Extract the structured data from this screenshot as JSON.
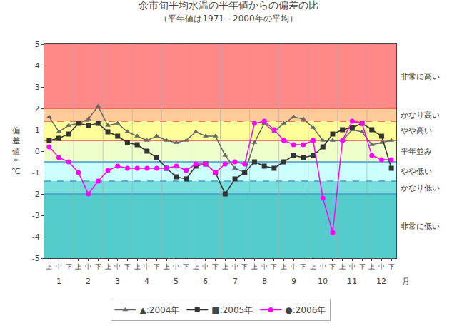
{
  "chart_data": {
    "type": "line",
    "title": "余市旬平均水温の平年値からの偏差の比",
    "subtitle": "（平年値は1971－2000年の平均）",
    "ylabel": "偏\n差\n値\n*\n℃",
    "categories": [
      "上",
      "中",
      "下",
      "上",
      "中",
      "下",
      "上",
      "中",
      "下",
      "上",
      "中",
      "下",
      "上",
      "中",
      "下",
      "上",
      "中",
      "下",
      "上",
      "中",
      "下",
      "上",
      "中",
      "下",
      "上",
      "中",
      "下",
      "上",
      "中",
      "下",
      "上",
      "中",
      "下",
      "上",
      "中",
      "下"
    ],
    "month_labels": [
      "1",
      "2",
      "3",
      "4",
      "5",
      "6",
      "7",
      "8",
      "9",
      "10",
      "11",
      "12"
    ],
    "month_unit": "月",
    "series": [
      {
        "name": "▲:2004年",
        "color": "#666666",
        "marker": "triangle",
        "values": [
          1.6,
          0.9,
          1.2,
          1.3,
          1.5,
          2.1,
          1.2,
          1.3,
          0.9,
          0.7,
          0.5,
          0.7,
          0.5,
          0.4,
          0.5,
          0.9,
          0.7,
          0.7,
          -0.2,
          -0.8,
          -1.0,
          0.4,
          1.3,
          0.9,
          1.3,
          1.6,
          1.5,
          1.1,
          0.5,
          0.5,
          0.5,
          1.0,
          0.9,
          0.3,
          0.4,
          0.5
        ]
      },
      {
        "name": "■:2005年",
        "color": "#333333",
        "marker": "square",
        "values": [
          0.5,
          0.6,
          0.8,
          1.3,
          1.2,
          1.3,
          0.9,
          0.7,
          0.4,
          0.3,
          0.0,
          -0.3,
          -0.8,
          -1.2,
          -1.3,
          -0.7,
          -0.6,
          -1.0,
          -2.0,
          -1.3,
          -1.0,
          -0.5,
          -0.7,
          -0.8,
          -0.5,
          -0.2,
          -0.3,
          -0.2,
          0.2,
          0.8,
          1.0,
          1.1,
          1.3,
          1.0,
          0.7,
          -0.8
        ]
      },
      {
        "name": "●:2006年",
        "color": "#FF00FF",
        "marker": "circle",
        "values": [
          0.2,
          -0.3,
          -0.5,
          -1.0,
          -2.0,
          -1.4,
          -0.9,
          -0.7,
          -0.8,
          -0.8,
          -0.8,
          -0.8,
          -0.8,
          -0.7,
          -0.9,
          -0.6,
          -0.6,
          -1.0,
          -0.6,
          -0.5,
          -0.6,
          1.3,
          1.4,
          1.0,
          0.5,
          0.3,
          0.3,
          0.5,
          -2.2,
          -3.8,
          0.5,
          1.4,
          1.3,
          -0.2,
          -0.4,
          -0.4
        ]
      }
    ],
    "ylim": [
      -5,
      5
    ],
    "yticks": [
      -5,
      -4,
      -3,
      -2,
      -1,
      0,
      1,
      2,
      3,
      4,
      5
    ],
    "grid": false,
    "legend": "bottom",
    "zones": [
      {
        "from": -5,
        "to": -2.0,
        "color": "#55CCCC",
        "label": "非常に低い"
      },
      {
        "from": -2.0,
        "to": -1.4,
        "color": "#77DDDD",
        "label": "かなり低い"
      },
      {
        "from": -1.4,
        "to": -0.5,
        "color": "#CCFFFF",
        "label": "やや低い"
      },
      {
        "from": -0.5,
        "to": 0.5,
        "color": "#EEFFCC",
        "label": "平年並み"
      },
      {
        "from": 0.5,
        "to": 1.4,
        "color": "#FFFF99",
        "label": "やや高い"
      },
      {
        "from": 1.4,
        "to": 2.0,
        "color": "#FFCC99",
        "label": "かなり高い"
      },
      {
        "from": 2.0,
        "to": 5,
        "color": "#FF8888",
        "label": "非常に高い"
      }
    ],
    "reference_lines": [
      {
        "value": 2.0,
        "color": "#FF4444",
        "line_style": "solid"
      },
      {
        "value": 1.4,
        "color": "#FF4444",
        "line_style": "dashed"
      },
      {
        "value": 0.5,
        "color": "#FF4444",
        "line_style": "solid"
      },
      {
        "value": -0.5,
        "color": "#4499CC",
        "line_style": "solid"
      },
      {
        "value": -1.4,
        "color": "#4499CC",
        "line_style": "dashed"
      },
      {
        "value": -2.0,
        "color": "#4499CC",
        "line_style": "solid"
      }
    ]
  }
}
